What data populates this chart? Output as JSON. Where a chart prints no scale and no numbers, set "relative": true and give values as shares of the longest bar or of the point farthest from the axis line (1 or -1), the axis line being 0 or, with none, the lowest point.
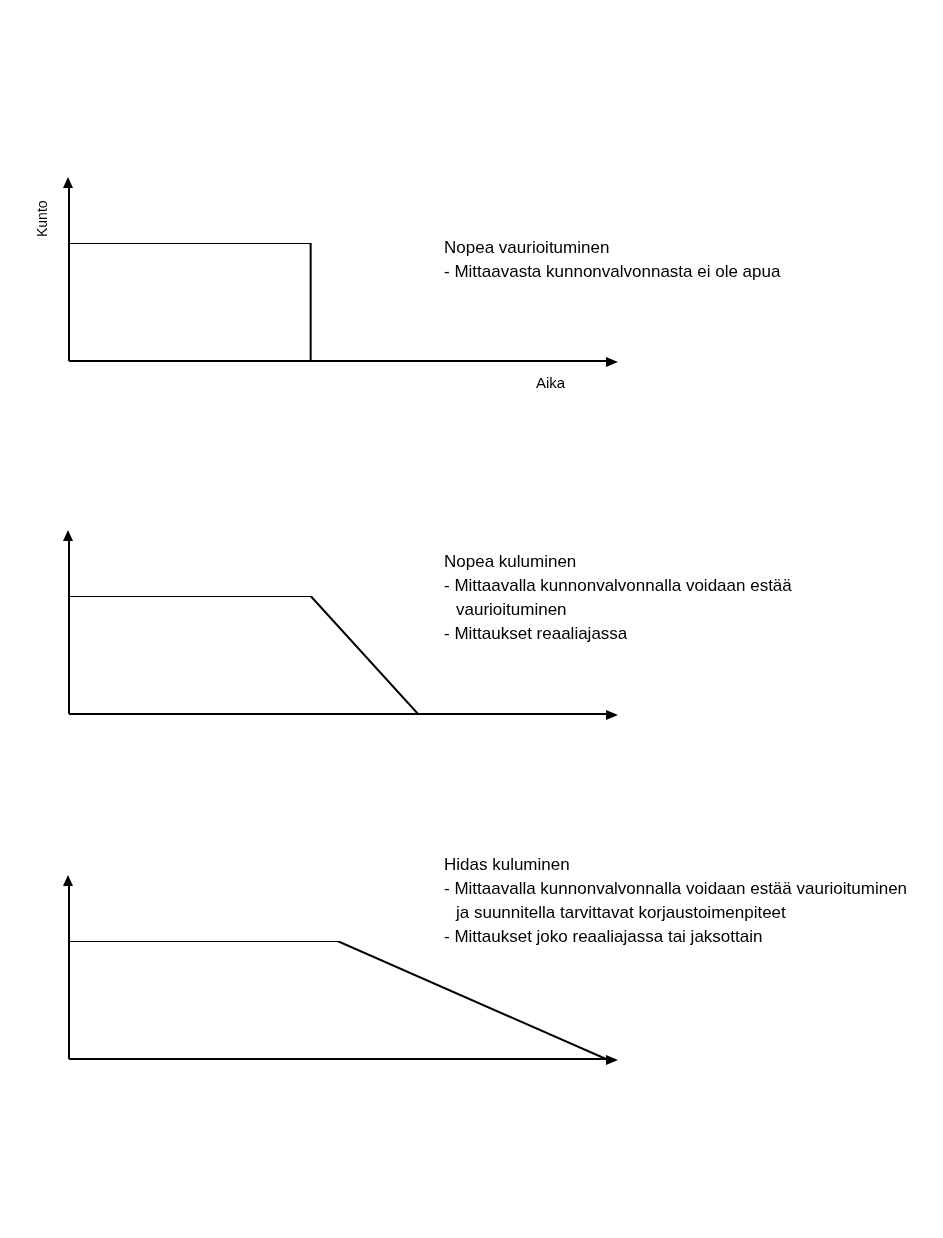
{
  "chart_data": [
    {
      "type": "step",
      "title": "Nopea vaurioituminen",
      "annotations": [
        "- Mittaavasta kunnonvalvonnasta ei ole apua"
      ],
      "xlabel": "Aika",
      "ylabel": "Kunto",
      "relative": true,
      "categories": [
        null,
        null,
        null,
        null,
        null,
        null,
        null,
        null,
        null,
        null,
        null,
        null,
        null,
        null,
        null,
        null,
        null,
        null,
        null,
        null,
        null
      ],
      "series": [
        {
          "color": "#000000",
          "values": [
            1,
            null,
            null,
            null,
            null,
            null,
            null,
            null,
            null,
            0,
            null,
            null,
            null,
            null,
            null,
            null,
            null,
            null,
            null,
            null,
            null
          ]
        }
      ]
    },
    {
      "type": "line",
      "title": "Nopea kuluminen",
      "annotations": [
        "- Mittaavalla kunnonvalvonnalla voidaan estää vaurioituminen",
        "- Mittaukset reaaliajassa"
      ],
      "relative": true,
      "categories": [
        null,
        null,
        null,
        null,
        null,
        null,
        null,
        null,
        null,
        null,
        null,
        null,
        null,
        null,
        null,
        null,
        null,
        null,
        null,
        null,
        null
      ],
      "series": [
        {
          "color": "#000000",
          "values": [
            1,
            null,
            null,
            null,
            null,
            null,
            null,
            null,
            null,
            1,
            null,
            null,
            null,
            0,
            null,
            null,
            null,
            null,
            null,
            null,
            null
          ]
        }
      ]
    },
    {
      "type": "line",
      "title": "Hidas kuluminen",
      "annotations": [
        "- Mittaavalla kunnonvalvonnalla voidaan  estää vaurioituminen ja suunnitella tarvittavat korjaustoimenpiteet",
        "- Mittaukset joko reaaliajassa tai jaksottain"
      ],
      "relative": true,
      "categories": [
        null,
        null,
        null,
        null,
        null,
        null,
        null,
        null,
        null,
        null,
        null,
        null,
        null,
        null,
        null,
        null,
        null,
        null,
        null,
        null,
        null
      ],
      "series": [
        {
          "color": "#000000",
          "values": [
            1,
            null,
            null,
            null,
            null,
            null,
            null,
            null,
            null,
            null,
            1,
            null,
            null,
            null,
            null,
            null,
            null,
            null,
            null,
            null,
            0
          ]
        }
      ]
    }
  ]
}
